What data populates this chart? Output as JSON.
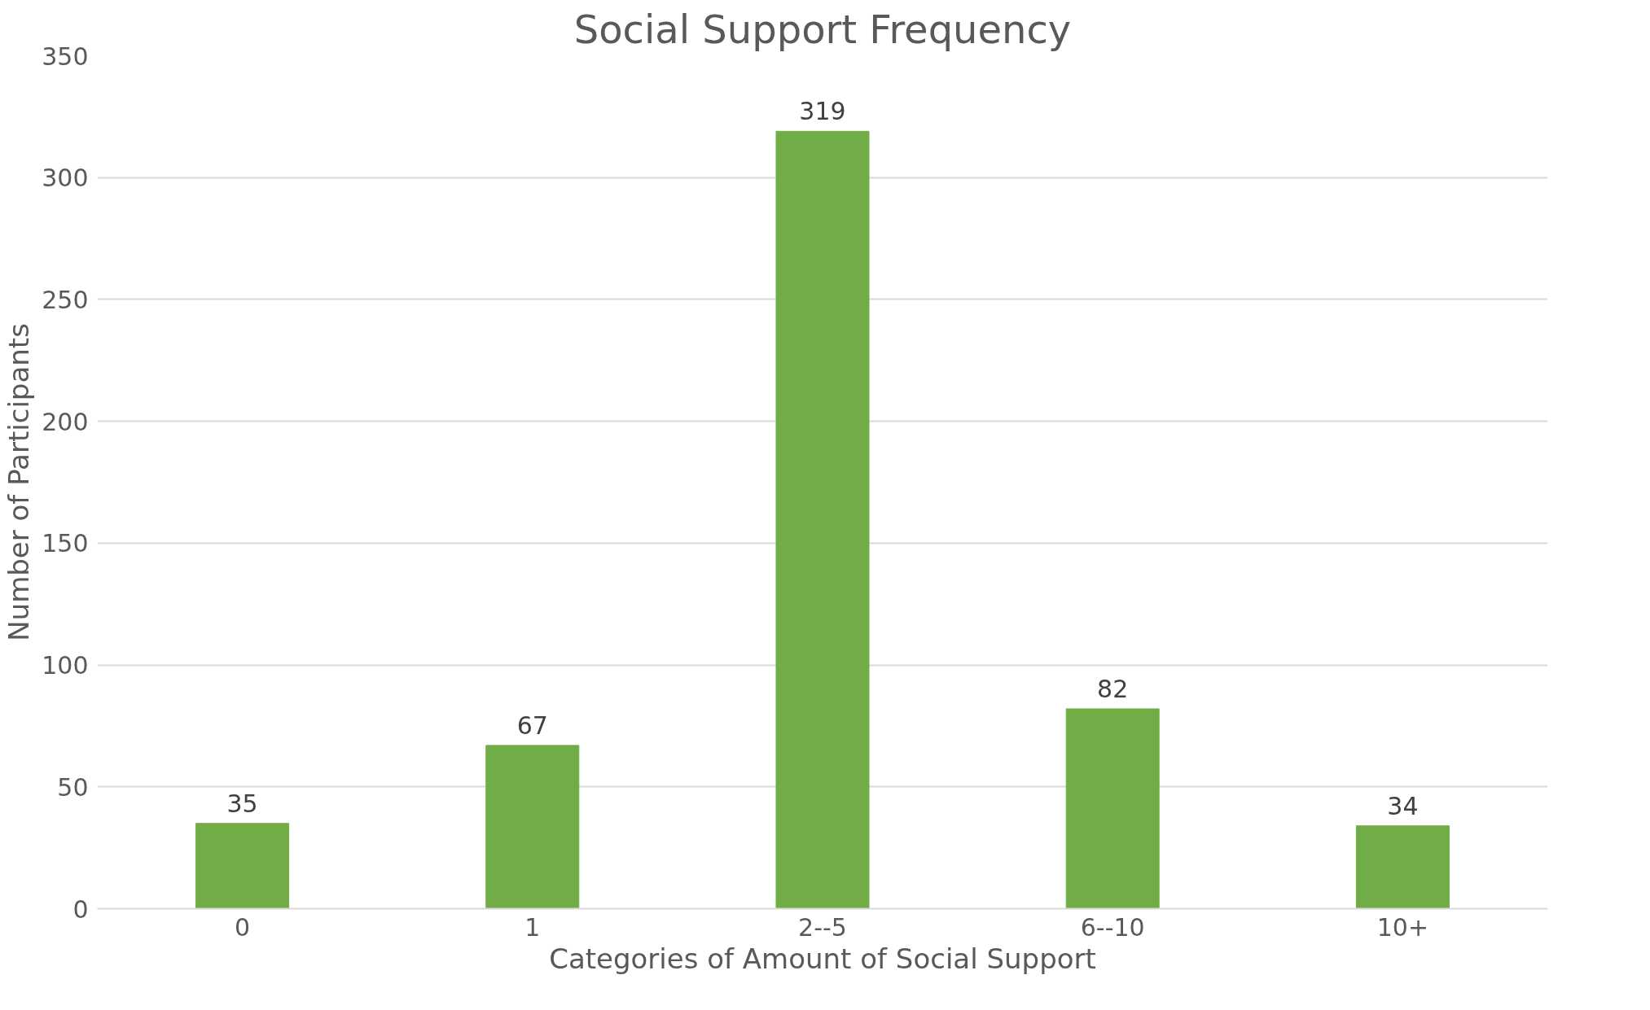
{
  "chart_data": {
    "type": "bar",
    "title": "Social Support Frequency",
    "xlabel": "Categories of Amount of Social Support",
    "ylabel": "Number of Participants",
    "categories": [
      "0",
      "1",
      "2--5",
      "6--10",
      "10+"
    ],
    "values": [
      35,
      67,
      319,
      82,
      34
    ],
    "color": "#70ad47",
    "ylim": [
      0,
      350
    ],
    "yticks": [
      0,
      50,
      100,
      150,
      200,
      250,
      300,
      350
    ],
    "grid": "y",
    "data_labels": true
  }
}
